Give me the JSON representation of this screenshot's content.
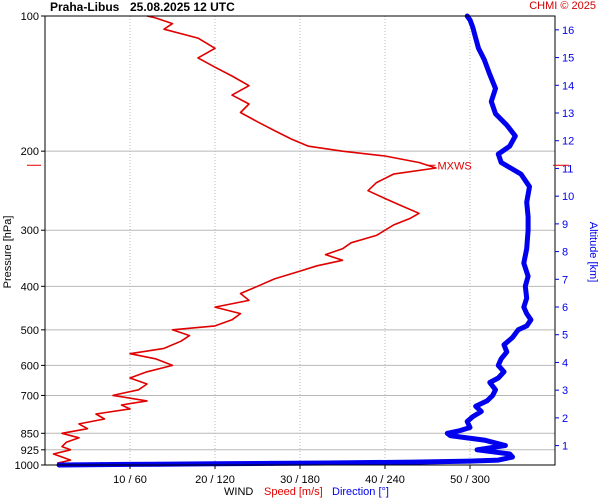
{
  "header": {
    "station": "Praha-Libus",
    "datetime": "25.08.2025 12 UTC",
    "credit": "CHMI © 2025"
  },
  "chart_data": {
    "type": "line",
    "left_axis": {
      "label": "Pressure [hPa]",
      "scale": "log",
      "range": [
        1000,
        100
      ],
      "ticks": [
        "100",
        "200",
        "300",
        "400",
        "500",
        "600",
        "700",
        "850",
        "925",
        "1000"
      ]
    },
    "right_axis": {
      "label": "Altitude [km]",
      "range_km": [
        0.3,
        16.5
      ],
      "ticks": [
        "1",
        "2",
        "3",
        "4",
        "5",
        "6",
        "7",
        "8",
        "9",
        "10",
        "11",
        "12",
        "13",
        "14",
        "15",
        "16"
      ]
    },
    "bottom_axis": {
      "title": "WIND",
      "speed_label": "Speed [m/s]",
      "direction_label": "Direction [°]",
      "ticks": [
        "10 / 60",
        "20 / 120",
        "30 / 180",
        "40 / 240",
        "50 / 300"
      ],
      "speed_range": [
        0,
        60
      ],
      "direction_range": [
        0,
        360
      ]
    },
    "grid": true,
    "annotation": {
      "text": "MXWS",
      "pressure_hpa": 215,
      "speed_ms": 45
    },
    "colors": {
      "speed": "#e00000",
      "direction": "#0000ee",
      "grid": "#b8b8b8"
    },
    "series": [
      {
        "name": "Speed [m/s]",
        "points": [
          [
            1000,
            2
          ],
          [
            990,
            1.5
          ],
          [
            975,
            3
          ],
          [
            960,
            2
          ],
          [
            945,
            1
          ],
          [
            925,
            3
          ],
          [
            910,
            2
          ],
          [
            890,
            2.5
          ],
          [
            870,
            4
          ],
          [
            850,
            2
          ],
          [
            830,
            5
          ],
          [
            810,
            4
          ],
          [
            790,
            7
          ],
          [
            770,
            6
          ],
          [
            750,
            10
          ],
          [
            735,
            9
          ],
          [
            720,
            12
          ],
          [
            700,
            8
          ],
          [
            680,
            11
          ],
          [
            660,
            12
          ],
          [
            640,
            10
          ],
          [
            620,
            12
          ],
          [
            600,
            15
          ],
          [
            580,
            13
          ],
          [
            565,
            10
          ],
          [
            550,
            14
          ],
          [
            530,
            16
          ],
          [
            515,
            17
          ],
          [
            500,
            15
          ],
          [
            490,
            20
          ],
          [
            475,
            22
          ],
          [
            460,
            23
          ],
          [
            445,
            20
          ],
          [
            430,
            24
          ],
          [
            415,
            23
          ],
          [
            400,
            25
          ],
          [
            385,
            27
          ],
          [
            370,
            30
          ],
          [
            360,
            32
          ],
          [
            350,
            35
          ],
          [
            340,
            33
          ],
          [
            330,
            35
          ],
          [
            320,
            36
          ],
          [
            308,
            39
          ],
          [
            300,
            40
          ],
          [
            292,
            41
          ],
          [
            282,
            43
          ],
          [
            275,
            44
          ],
          [
            265,
            42
          ],
          [
            255,
            40
          ],
          [
            245,
            38
          ],
          [
            235,
            39
          ],
          [
            225,
            41
          ],
          [
            218,
            46
          ],
          [
            212,
            44
          ],
          [
            205,
            40
          ],
          [
            200,
            35
          ],
          [
            195,
            31
          ],
          [
            188,
            29
          ],
          [
            180,
            27
          ],
          [
            172,
            25
          ],
          [
            164,
            23
          ],
          [
            157,
            24
          ],
          [
            150,
            22
          ],
          [
            143,
            24
          ],
          [
            136,
            22
          ],
          [
            130,
            20
          ],
          [
            124,
            18
          ],
          [
            118,
            20
          ],
          [
            112,
            18
          ],
          [
            107,
            14
          ],
          [
            104,
            15
          ],
          [
            101,
            13
          ],
          [
            100,
            12
          ]
        ]
      },
      {
        "name": "Direction [°]",
        "points": [
          [
            1000,
            10
          ],
          [
            998,
            40
          ],
          [
            996,
            80
          ],
          [
            994,
            120
          ],
          [
            992,
            160
          ],
          [
            990,
            200
          ],
          [
            985,
            260
          ],
          [
            980,
            300
          ],
          [
            975,
            320
          ],
          [
            960,
            330
          ],
          [
            945,
            328
          ],
          [
            925,
            305
          ],
          [
            905,
            325
          ],
          [
            880,
            310
          ],
          [
            860,
            286
          ],
          [
            850,
            284
          ],
          [
            840,
            292
          ],
          [
            825,
            300
          ],
          [
            800,
            298
          ],
          [
            780,
            302
          ],
          [
            760,
            308
          ],
          [
            740,
            304
          ],
          [
            720,
            312
          ],
          [
            700,
            316
          ],
          [
            680,
            318
          ],
          [
            655,
            314
          ],
          [
            640,
            320
          ],
          [
            620,
            324
          ],
          [
            600,
            320
          ],
          [
            580,
            322
          ],
          [
            560,
            326
          ],
          [
            540,
            324
          ],
          [
            520,
            330
          ],
          [
            500,
            334
          ],
          [
            490,
            340
          ],
          [
            475,
            343
          ],
          [
            460,
            340
          ],
          [
            445,
            338
          ],
          [
            425,
            340
          ],
          [
            400,
            339
          ],
          [
            380,
            341
          ],
          [
            355,
            338
          ],
          [
            330,
            340
          ],
          [
            300,
            341
          ],
          [
            280,
            341
          ],
          [
            260,
            340
          ],
          [
            240,
            342
          ],
          [
            225,
            336
          ],
          [
            212,
            322
          ],
          [
            203,
            320
          ],
          [
            195,
            328
          ],
          [
            185,
            332
          ],
          [
            175,
            326
          ],
          [
            165,
            318
          ],
          [
            155,
            315
          ],
          [
            145,
            318
          ],
          [
            135,
            314
          ],
          [
            125,
            310
          ],
          [
            118,
            306
          ],
          [
            112,
            304
          ],
          [
            106,
            302
          ],
          [
            102,
            300
          ],
          [
            100,
            298
          ]
        ]
      }
    ]
  }
}
